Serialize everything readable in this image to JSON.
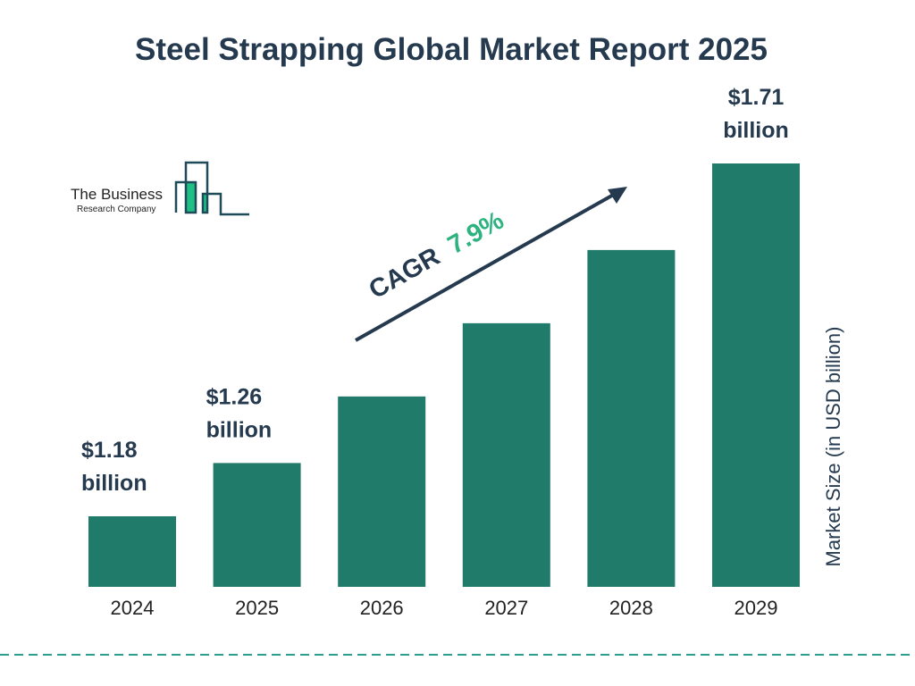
{
  "chart_data": {
    "type": "bar",
    "title": "Steel Strapping Global Market Report 2025",
    "categories": [
      "2024",
      "2025",
      "2026",
      "2027",
      "2028",
      "2029"
    ],
    "values": [
      1.18,
      1.26,
      1.36,
      1.47,
      1.58,
      1.71
    ],
    "data_labels": [
      {
        "index": 0,
        "value": "$1.18",
        "unit": "billion"
      },
      {
        "index": 1,
        "value": "$1.26",
        "unit": "billion"
      },
      {
        "index": 5,
        "value": "$1.71",
        "unit": "billion"
      }
    ],
    "ylabel": "Market Size (in USD billion)",
    "xlabel": "",
    "ylim": [
      1.074,
      1.71
    ],
    "grid": false,
    "bar_color": "#217b6b",
    "annotation": {
      "label": "CAGR",
      "value": "7.9%",
      "label_color": "#253a4f",
      "value_color": "#2db37f"
    }
  },
  "logo": {
    "line1": "The Business",
    "line2": "Research Company",
    "line_color": "#1f4a5a",
    "accent": "#1fbf85"
  },
  "footer": {
    "dash_color": "#2a9d8f"
  }
}
